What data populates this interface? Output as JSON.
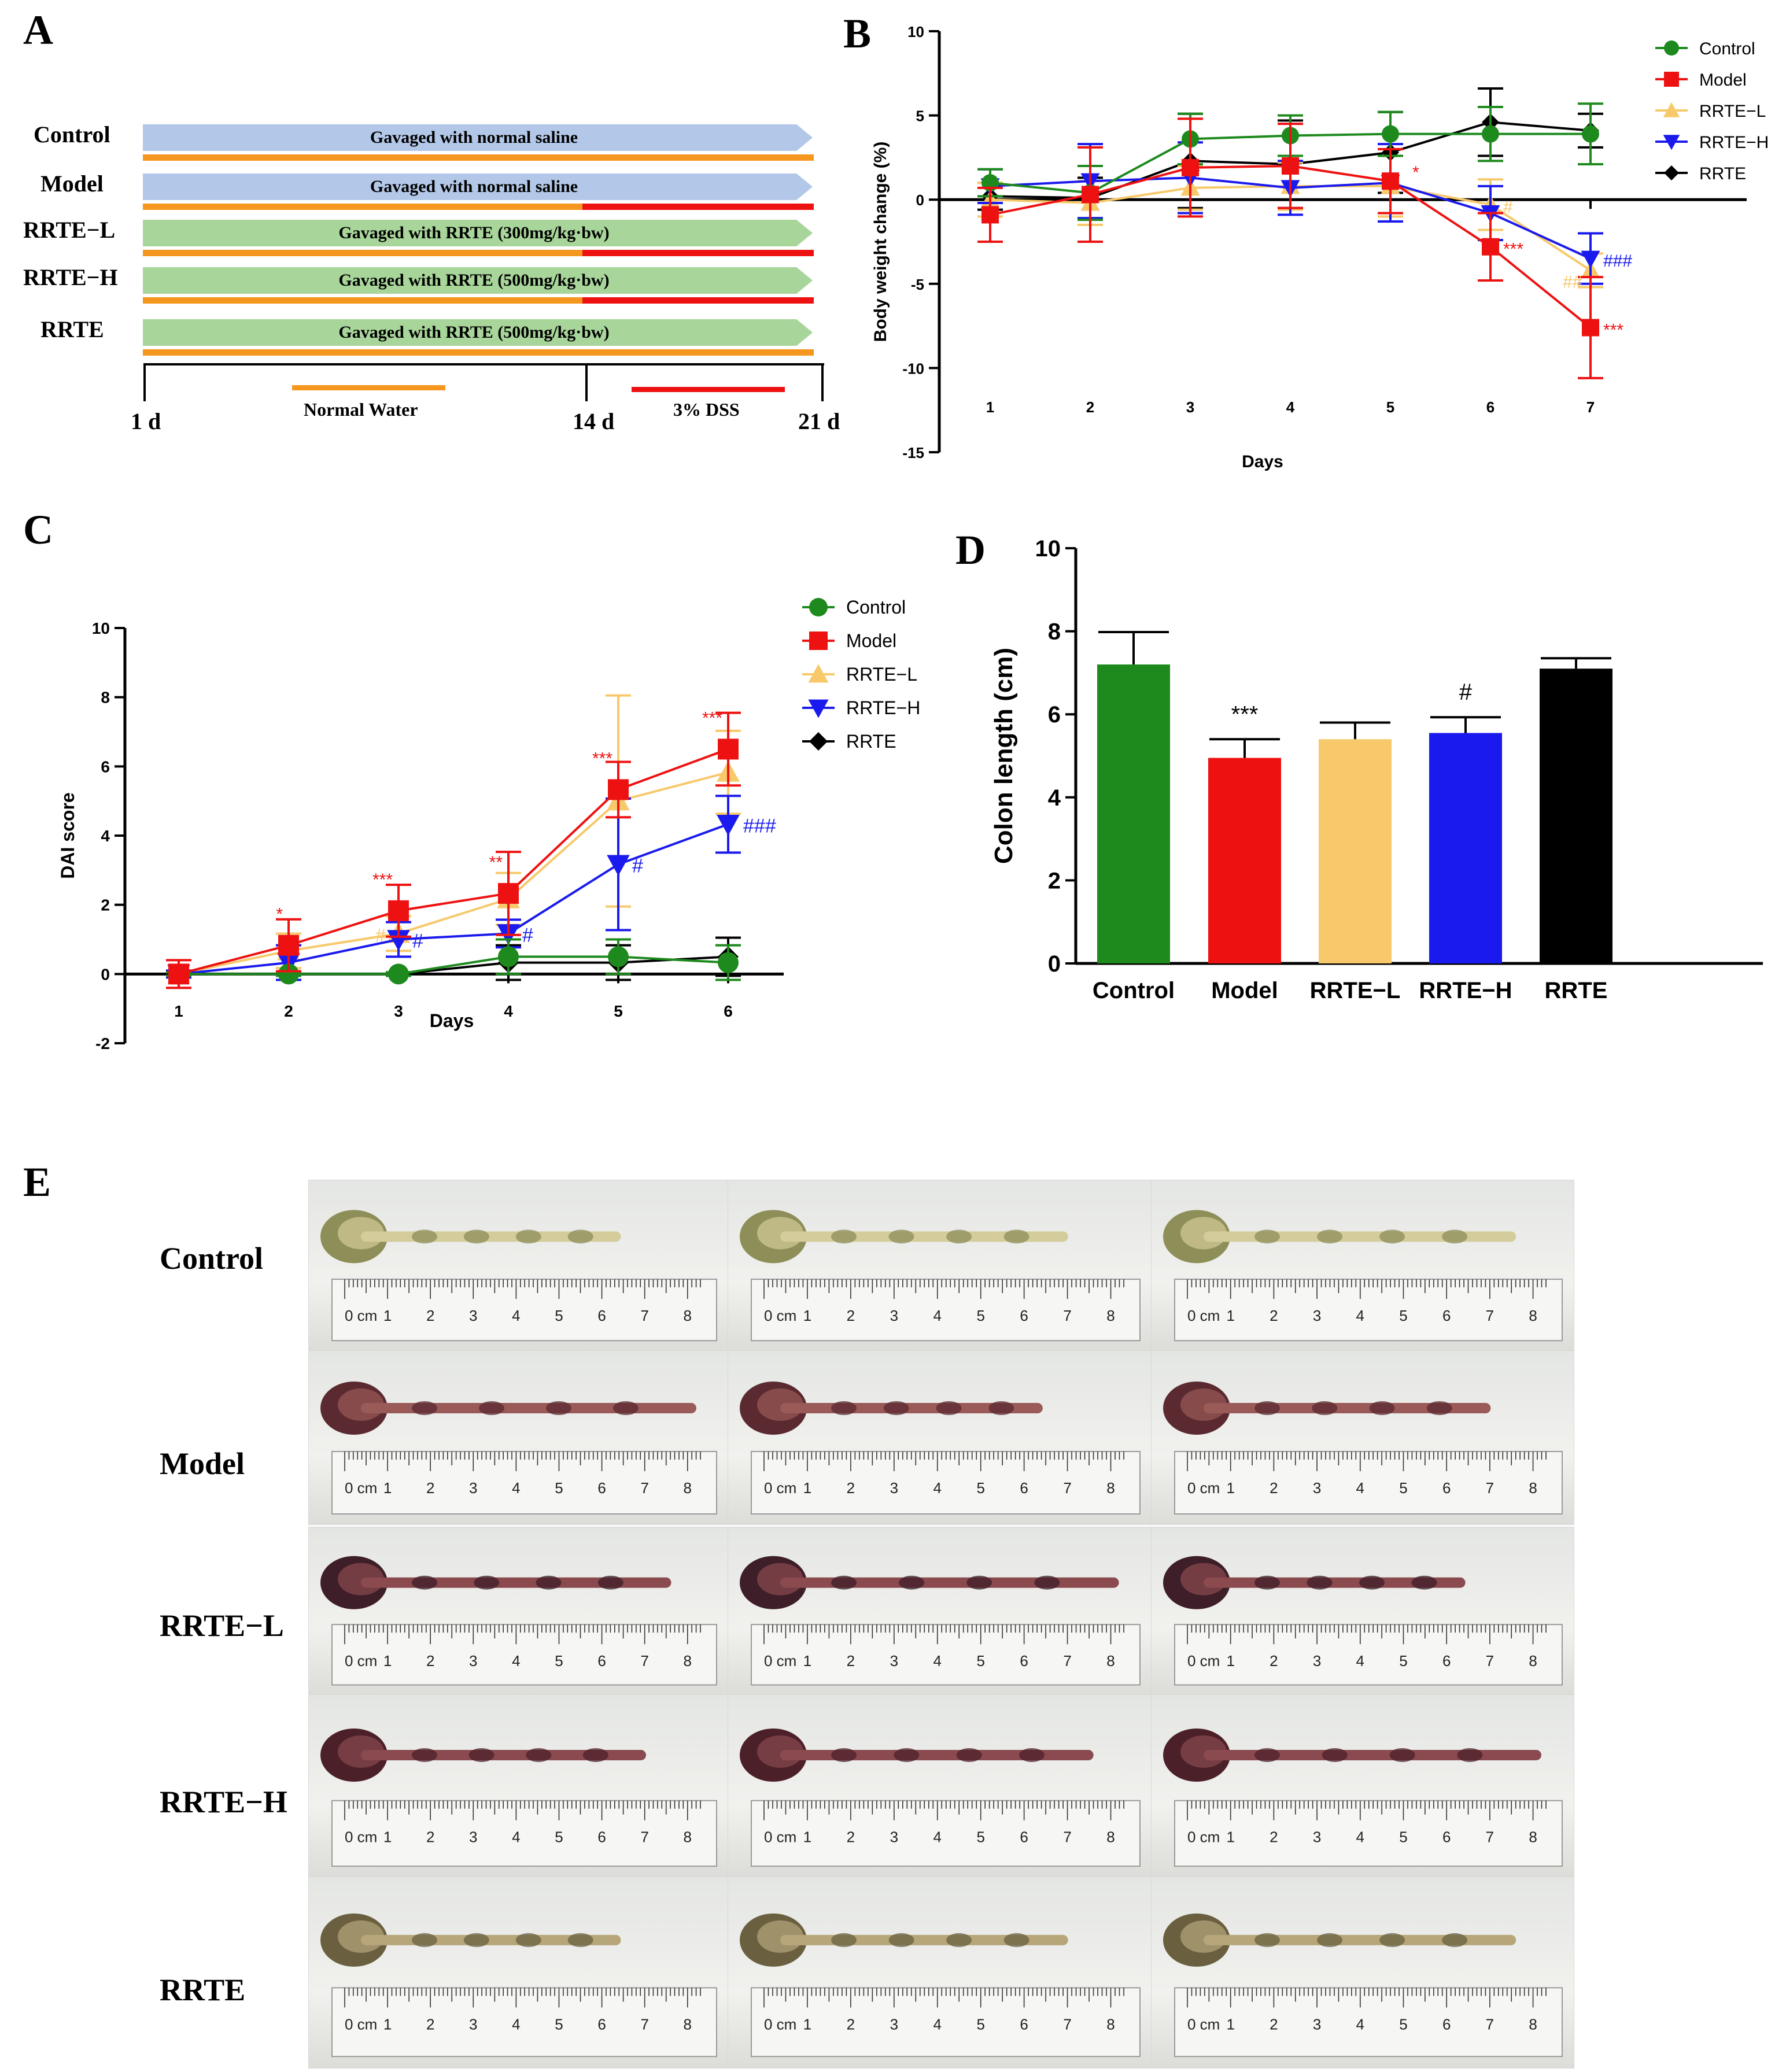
{
  "panels": {
    "A": "A",
    "B": "B",
    "C": "C",
    "D": "D",
    "E": "E"
  },
  "colors": {
    "control": "#1e8a1e",
    "model": "#ee1111",
    "rrte_l": "#f7c96b",
    "rrte_h": "#1a1aee",
    "rrte": "#000000",
    "saline_bar": "#b3c8e8",
    "rrte_bar": "#a8d59a",
    "water": "#f5961e",
    "dss": "#ee1111"
  },
  "panelA": {
    "rows": [
      {
        "label": "Control",
        "text": "Gavaged with  normal saline",
        "kind": "saline",
        "dss": false
      },
      {
        "label": "Model",
        "text": "Gavaged with  normal saline",
        "kind": "saline",
        "dss": true
      },
      {
        "label": "RRTE−L",
        "text": "Gavaged with  RRTE (300mg/kg·bw)",
        "kind": "rrte",
        "dss": true
      },
      {
        "label": "RRTE−H",
        "text": "Gavaged with  RRTE (500mg/kg·bw)",
        "kind": "rrte",
        "dss": true
      },
      {
        "label": "RRTE",
        "text": "Gavaged with  RRTE (500mg/kg·bw)",
        "kind": "rrte",
        "dss": false
      }
    ],
    "timeline": {
      "start": "1 d",
      "mid": "14 d",
      "end": "21 d",
      "water": "Normal Water",
      "dss": "3% DSS"
    }
  },
  "chart_data": [
    {
      "id": "B",
      "type": "line",
      "title": "",
      "xlabel": "Days",
      "ylabel": "Body weight change (%)",
      "x": [
        1,
        2,
        3,
        4,
        5,
        6,
        7
      ],
      "ylim": [
        -15,
        10
      ],
      "yticks": [
        -15,
        -10,
        -5,
        0,
        5,
        10
      ],
      "series": [
        {
          "name": "Control",
          "marker": "circle",
          "values": [
            1.0,
            0.4,
            3.6,
            3.8,
            3.9,
            3.9,
            3.9
          ],
          "err": [
            0.8,
            1.6,
            1.5,
            1.2,
            1.3,
            1.6,
            1.8
          ]
        },
        {
          "name": "Model",
          "marker": "square",
          "values": [
            -0.9,
            0.3,
            1.9,
            2.0,
            1.1,
            -2.8,
            -7.6
          ],
          "err": [
            1.6,
            2.8,
            2.9,
            2.5,
            1.9,
            2.0,
            3.0
          ]
        },
        {
          "name": "RRTE−L",
          "marker": "triangle-up",
          "values": [
            0.0,
            -0.2,
            0.7,
            0.8,
            0.8,
            -0.3,
            -4.2
          ],
          "err": [
            1.0,
            1.3,
            1.3,
            1.4,
            1.8,
            1.5,
            1.0
          ]
        },
        {
          "name": "RRTE−H",
          "marker": "triangle-down",
          "values": [
            0.8,
            1.1,
            1.3,
            0.7,
            1.0,
            -0.8,
            -3.5
          ],
          "err": [
            1.0,
            2.2,
            2.1,
            1.6,
            2.3,
            1.6,
            1.5
          ]
        },
        {
          "name": "RRTE",
          "marker": "diamond",
          "values": [
            0.2,
            0.1,
            2.3,
            2.1,
            2.8,
            4.6,
            4.1
          ],
          "err": [
            0.8,
            1.2,
            2.8,
            2.6,
            2.4,
            2.0,
            1.0
          ]
        }
      ],
      "annotations": [
        {
          "text": "*",
          "x": 5,
          "y": 1.1,
          "series": "Model"
        },
        {
          "text": "***",
          "x": 6,
          "y": -2.8,
          "series": "Model"
        },
        {
          "text": "***",
          "x": 7,
          "y": -7.6,
          "series": "Model"
        },
        {
          "text": "#",
          "x": 6,
          "y": -0.3,
          "series": "RRTE−L"
        },
        {
          "text": "##",
          "x": 7,
          "y": -4.2,
          "series": "RRTE−L"
        },
        {
          "text": "###",
          "x": 7,
          "y": -3.5,
          "series": "RRTE−H"
        }
      ],
      "legend": "top-right"
    },
    {
      "id": "C",
      "type": "line",
      "title": "",
      "xlabel": "Days",
      "ylabel": "DAI score",
      "x": [
        1,
        2,
        3,
        4,
        5,
        6
      ],
      "ylim": [
        -2,
        10
      ],
      "yticks": [
        -2,
        0,
        2,
        4,
        6,
        8,
        10
      ],
      "series": [
        {
          "name": "Control",
          "marker": "circle",
          "values": [
            0,
            0,
            0,
            0.5,
            0.5,
            0.33
          ],
          "err": [
            0.05,
            0.05,
            0.05,
            0.5,
            0.5,
            0.5
          ]
        },
        {
          "name": "Model",
          "marker": "square",
          "values": [
            0,
            0.83,
            1.83,
            2.33,
            5.33,
            6.5
          ],
          "err": [
            0.4,
            0.75,
            0.75,
            1.2,
            0.8,
            1.05
          ]
        },
        {
          "name": "RRTE−L",
          "marker": "triangle-up",
          "values": [
            0,
            0.67,
            1.17,
            2.17,
            5.0,
            5.83
          ],
          "err": [
            0.1,
            0.5,
            0.5,
            0.75,
            3.05,
            1.2
          ]
        },
        {
          "name": "RRTE−H",
          "marker": "triangle-down",
          "values": [
            0,
            0.33,
            1.0,
            1.17,
            3.17,
            4.33
          ],
          "err": [
            0.1,
            0.5,
            0.5,
            0.4,
            1.9,
            0.82
          ]
        },
        {
          "name": "RRTE",
          "marker": "diamond",
          "values": [
            0,
            0,
            0,
            0.33,
            0.33,
            0.5
          ],
          "err": [
            0.05,
            0.05,
            0.05,
            0.5,
            0.5,
            0.55
          ]
        }
      ],
      "annotations": [
        {
          "text": "*",
          "x": 2,
          "y": 0.83,
          "series": "Model"
        },
        {
          "text": "***",
          "x": 3,
          "y": 1.83,
          "series": "Model"
        },
        {
          "text": "**",
          "x": 4,
          "y": 2.33,
          "series": "Model"
        },
        {
          "text": "***",
          "x": 5,
          "y": 5.33,
          "series": "Model"
        },
        {
          "text": "***",
          "x": 6,
          "y": 6.5,
          "series": "Model"
        },
        {
          "text": "#",
          "x": 3,
          "y": 1.17,
          "series": "RRTE−L"
        },
        {
          "text": "#",
          "x": 3,
          "y": 1.0,
          "series": "RRTE−H"
        },
        {
          "text": "#",
          "x": 4,
          "y": 1.17,
          "series": "RRTE−H"
        },
        {
          "text": "#",
          "x": 5,
          "y": 3.17,
          "series": "RRTE−H"
        },
        {
          "text": "###",
          "x": 6,
          "y": 4.33,
          "series": "RRTE−H"
        }
      ],
      "legend": "right"
    },
    {
      "id": "D",
      "type": "bar",
      "title": "",
      "xlabel": "",
      "ylabel": "Colon length (cm)",
      "categories": [
        "Control",
        "Model",
        "RRTE−L",
        "RRTE−H",
        "RRTE"
      ],
      "values": [
        7.2,
        4.95,
        5.4,
        5.55,
        7.1
      ],
      "err": [
        0.78,
        0.45,
        0.4,
        0.38,
        0.25
      ],
      "annotations": [
        "",
        "***",
        "",
        "#",
        ""
      ],
      "ylim": [
        0,
        10
      ],
      "yticks": [
        0,
        2,
        4,
        6,
        8,
        10
      ]
    }
  ],
  "panelE": {
    "rows": [
      "Control",
      "Model",
      "RRTE−L",
      "RRTE−H",
      "RRTE"
    ],
    "ruler": [
      "0 cm",
      "1",
      "2",
      "3",
      "4",
      "5",
      "6",
      "7",
      "8"
    ]
  }
}
